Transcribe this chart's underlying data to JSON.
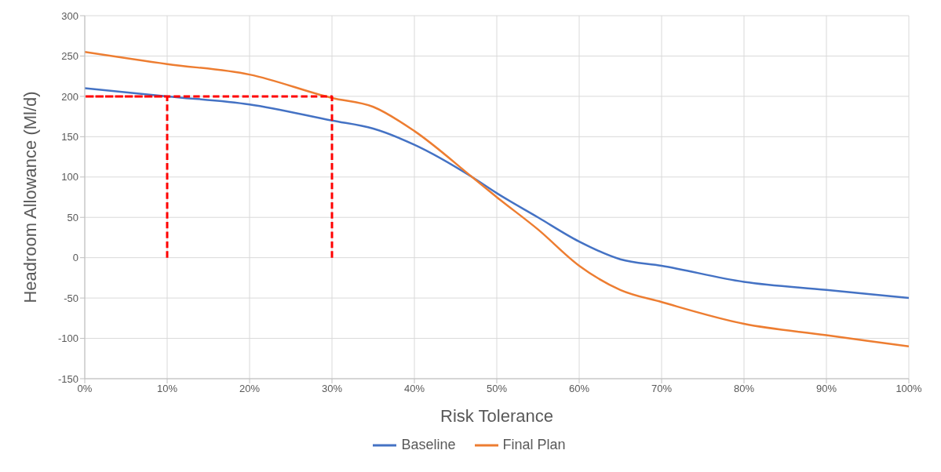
{
  "chart_data": {
    "type": "line",
    "xlabel": "Risk Tolerance",
    "ylabel": "Headroom Allowance (Ml/d)",
    "xlim": [
      0,
      100
    ],
    "xticks": [
      {
        "value": 0,
        "label": "0%"
      },
      {
        "value": 10,
        "label": "10%"
      },
      {
        "value": 20,
        "label": "20%"
      },
      {
        "value": 30,
        "label": "30%"
      },
      {
        "value": 40,
        "label": "40%"
      },
      {
        "value": 50,
        "label": "50%"
      },
      {
        "value": 60,
        "label": "60%"
      },
      {
        "value": 70,
        "label": "70%"
      },
      {
        "value": 80,
        "label": "80%"
      },
      {
        "value": 90,
        "label": "90%"
      },
      {
        "value": 100,
        "label": "100%"
      }
    ],
    "ylim": [
      -150,
      300
    ],
    "yticks": [
      -150,
      -100,
      -50,
      0,
      50,
      100,
      150,
      200,
      250,
      300
    ],
    "grid": true,
    "legend": "bottom",
    "marker": "none",
    "series": [
      {
        "name": "Baseline",
        "color": "#4472c4",
        "x": [
          0,
          10,
          20,
          30,
          35,
          40,
          47,
          50,
          55,
          60,
          65,
          70,
          80,
          90,
          100
        ],
        "values": [
          210,
          200,
          190,
          170,
          160,
          140,
          100,
          80,
          50,
          20,
          -2,
          -10,
          -30,
          -40,
          -50
        ]
      },
      {
        "name": "Final Plan",
        "color": "#ed7d31",
        "x": [
          0,
          10,
          20,
          30,
          35,
          40,
          47,
          50,
          55,
          60,
          65,
          70,
          80,
          90,
          100
        ],
        "values": [
          255,
          240,
          227,
          198,
          187,
          157,
          100,
          75,
          35,
          -10,
          -40,
          -55,
          -82,
          -96,
          -110
        ]
      },
      {
        "color": "#ff0000",
        "line_style": "dashed",
        "x": [
          10,
          10,
          0,
          30,
          30
        ],
        "values": [
          0,
          200,
          200,
          200,
          0
        ]
      }
    ]
  }
}
